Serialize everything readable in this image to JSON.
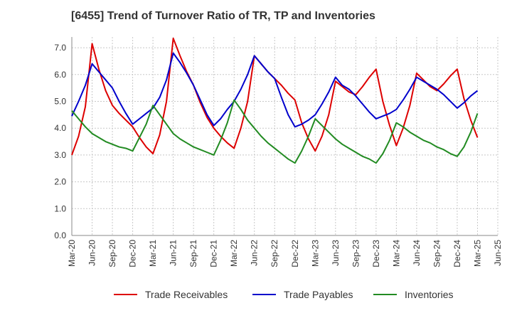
{
  "chart_data": {
    "type": "line",
    "title": "[6455]  Trend of Turnover Ratio of TR, TP and Inventories",
    "xlabel": "",
    "ylabel": "",
    "ylim": [
      0,
      7.4
    ],
    "yticks": [
      "0.0",
      "1.0",
      "2.0",
      "3.0",
      "4.0",
      "5.0",
      "6.0",
      "7.0"
    ],
    "ytick_values": [
      0,
      1,
      2,
      3,
      4,
      5,
      6,
      7
    ],
    "xticks": [
      "Mar-20",
      "Jun-20",
      "Sep-20",
      "Dec-20",
      "Mar-21",
      "Jun-21",
      "Sep-21",
      "Dec-21",
      "Mar-22",
      "Jun-22",
      "Sep-22",
      "Dec-22",
      "Mar-23",
      "Jun-23",
      "Sep-23",
      "Dec-23",
      "Mar-24",
      "Jun-24",
      "Sep-24",
      "Dec-24",
      "Mar-25",
      "Jun-25"
    ],
    "x": [
      "Mar-20",
      "Apr-20",
      "May-20",
      "Jun-20",
      "Jul-20",
      "Aug-20",
      "Sep-20",
      "Oct-20",
      "Nov-20",
      "Dec-20",
      "Jan-21",
      "Feb-21",
      "Mar-21",
      "Apr-21",
      "May-21",
      "Jun-21",
      "Jul-21",
      "Aug-21",
      "Sep-21",
      "Oct-21",
      "Nov-21",
      "Dec-21",
      "Jan-22",
      "Feb-22",
      "Mar-22",
      "Apr-22",
      "May-22",
      "Jun-22",
      "Jul-22",
      "Aug-22",
      "Sep-22",
      "Oct-22",
      "Nov-22",
      "Dec-22",
      "Jan-23",
      "Feb-23",
      "Mar-23",
      "Apr-23",
      "May-23",
      "Jun-23",
      "Jul-23",
      "Aug-23",
      "Sep-23",
      "Oct-23",
      "Nov-23",
      "Dec-23",
      "Jan-24",
      "Feb-24",
      "Mar-24",
      "Apr-24",
      "May-24",
      "Jun-24",
      "Jul-24",
      "Aug-24",
      "Sep-24",
      "Oct-24",
      "Nov-24",
      "Dec-24",
      "Jan-25",
      "Feb-25",
      "Mar-25"
    ],
    "grid": true,
    "legend_position": "bottom",
    "series": [
      {
        "name": "Trade Receivables",
        "color": "#dd0000",
        "values": [
          3.0,
          3.7,
          4.8,
          7.15,
          6.2,
          5.4,
          4.85,
          4.55,
          4.3,
          4.05,
          3.65,
          3.3,
          3.05,
          3.75,
          5.0,
          7.35,
          6.7,
          6.1,
          5.6,
          4.95,
          4.4,
          4.0,
          3.7,
          3.45,
          3.25,
          4.0,
          5.0,
          6.7,
          6.4,
          6.1,
          5.85,
          5.6,
          5.3,
          5.05,
          4.2,
          3.6,
          3.15,
          3.7,
          4.5,
          5.75,
          5.55,
          5.35,
          5.25,
          5.55,
          5.9,
          6.2,
          5.0,
          4.1,
          3.35,
          4.0,
          4.85,
          6.05,
          5.8,
          5.55,
          5.4,
          5.65,
          5.95,
          6.2,
          5.1,
          4.3,
          3.65
        ]
      },
      {
        "name": "Trade Payables",
        "color": "#0000cc",
        "values": [
          4.45,
          5.0,
          5.6,
          6.4,
          6.1,
          5.8,
          5.5,
          5.0,
          4.55,
          4.15,
          4.35,
          4.55,
          4.75,
          5.15,
          5.8,
          6.8,
          6.45,
          6.05,
          5.6,
          5.05,
          4.5,
          4.1,
          4.35,
          4.7,
          5.0,
          5.45,
          6.0,
          6.7,
          6.4,
          6.1,
          5.85,
          5.15,
          4.5,
          4.05,
          4.15,
          4.3,
          4.5,
          4.9,
          5.35,
          5.9,
          5.6,
          5.45,
          5.2,
          4.9,
          4.6,
          4.35,
          4.45,
          4.55,
          4.7,
          5.05,
          5.45,
          5.9,
          5.75,
          5.6,
          5.45,
          5.25,
          5.0,
          4.75,
          4.95,
          5.2,
          5.4
        ]
      },
      {
        "name": "Inventories",
        "color": "#228b22",
        "values": [
          4.65,
          4.35,
          4.05,
          3.8,
          3.65,
          3.5,
          3.4,
          3.3,
          3.25,
          3.15,
          3.65,
          4.15,
          4.85,
          4.5,
          4.15,
          3.8,
          3.6,
          3.45,
          3.3,
          3.2,
          3.1,
          3.0,
          3.55,
          4.2,
          5.05,
          4.7,
          4.3,
          4.0,
          3.7,
          3.45,
          3.25,
          3.05,
          2.85,
          2.7,
          3.15,
          3.7,
          4.35,
          4.1,
          3.85,
          3.6,
          3.4,
          3.25,
          3.1,
          2.95,
          2.85,
          2.7,
          3.05,
          3.55,
          4.2,
          4.05,
          3.85,
          3.7,
          3.55,
          3.45,
          3.3,
          3.2,
          3.05,
          2.95,
          3.3,
          3.85,
          4.55
        ]
      }
    ]
  }
}
